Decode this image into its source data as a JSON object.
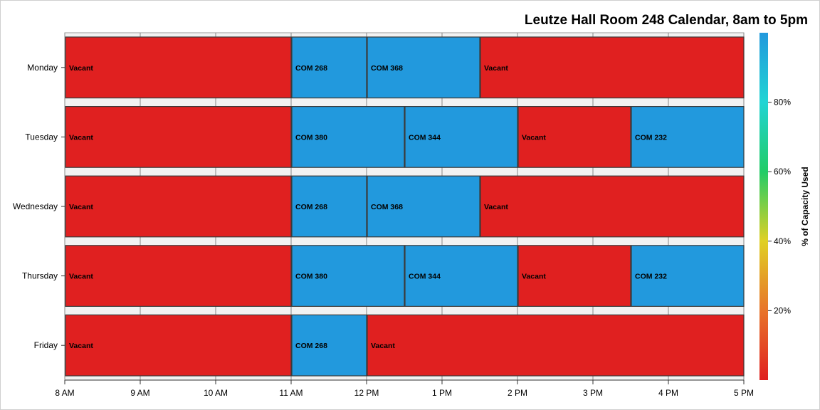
{
  "chart_data": {
    "type": "bar",
    "orientation": "horizontal",
    "title": "Leutze Hall Room 248 Calendar, 8am to 5pm",
    "xlim": [
      8,
      17
    ],
    "x_ticks": [
      {
        "value": 8,
        "label": "8 AM"
      },
      {
        "value": 9,
        "label": "9 AM"
      },
      {
        "value": 10,
        "label": "10 AM"
      },
      {
        "value": 11,
        "label": "11 AM"
      },
      {
        "value": 12,
        "label": "12 PM"
      },
      {
        "value": 13,
        "label": "1 PM"
      },
      {
        "value": 14,
        "label": "2 PM"
      },
      {
        "value": 15,
        "label": "3 PM"
      },
      {
        "value": 16,
        "label": "4 PM"
      },
      {
        "value": 17,
        "label": "5 PM"
      }
    ],
    "grid": true,
    "categories": [
      "Monday",
      "Tuesday",
      "Wednesday",
      "Thursday",
      "Friday"
    ],
    "segments": [
      {
        "day": "Monday",
        "start": 8,
        "end": 11,
        "label": "Vacant",
        "capacity_pct": 0
      },
      {
        "day": "Monday",
        "start": 11,
        "end": 12,
        "label": "COM 268",
        "capacity_pct": 100
      },
      {
        "day": "Monday",
        "start": 12,
        "end": 13.5,
        "label": "COM 368",
        "capacity_pct": 100
      },
      {
        "day": "Monday",
        "start": 13.5,
        "end": 17,
        "label": "Vacant",
        "capacity_pct": 0
      },
      {
        "day": "Tuesday",
        "start": 8,
        "end": 11,
        "label": "Vacant",
        "capacity_pct": 0
      },
      {
        "day": "Tuesday",
        "start": 11,
        "end": 12.5,
        "label": "COM 380",
        "capacity_pct": 100
      },
      {
        "day": "Tuesday",
        "start": 12.5,
        "end": 14,
        "label": "COM 344",
        "capacity_pct": 100
      },
      {
        "day": "Tuesday",
        "start": 14,
        "end": 15.5,
        "label": "Vacant",
        "capacity_pct": 0
      },
      {
        "day": "Tuesday",
        "start": 15.5,
        "end": 17,
        "label": "COM 232",
        "capacity_pct": 100
      },
      {
        "day": "Wednesday",
        "start": 8,
        "end": 11,
        "label": "Vacant",
        "capacity_pct": 0
      },
      {
        "day": "Wednesday",
        "start": 11,
        "end": 12,
        "label": "COM 268",
        "capacity_pct": 100
      },
      {
        "day": "Wednesday",
        "start": 12,
        "end": 13.5,
        "label": "COM 368",
        "capacity_pct": 100
      },
      {
        "day": "Wednesday",
        "start": 13.5,
        "end": 17,
        "label": "Vacant",
        "capacity_pct": 0
      },
      {
        "day": "Thursday",
        "start": 8,
        "end": 11,
        "label": "Vacant",
        "capacity_pct": 0
      },
      {
        "day": "Thursday",
        "start": 11,
        "end": 12.5,
        "label": "COM 380",
        "capacity_pct": 100
      },
      {
        "day": "Thursday",
        "start": 12.5,
        "end": 14,
        "label": "COM 344",
        "capacity_pct": 100
      },
      {
        "day": "Thursday",
        "start": 14,
        "end": 15.5,
        "label": "Vacant",
        "capacity_pct": 0
      },
      {
        "day": "Thursday",
        "start": 15.5,
        "end": 17,
        "label": "COM 232",
        "capacity_pct": 100
      },
      {
        "day": "Friday",
        "start": 8,
        "end": 11,
        "label": "Vacant",
        "capacity_pct": 0
      },
      {
        "day": "Friday",
        "start": 11,
        "end": 12,
        "label": "COM 268",
        "capacity_pct": 100
      },
      {
        "day": "Friday",
        "start": 12,
        "end": 17,
        "label": "Vacant",
        "capacity_pct": 0
      }
    ],
    "colors": {
      "vacant": "#e02020",
      "occupied": "#2299dd"
    },
    "legend": {
      "title": "% of Capacity Used",
      "placement": "right",
      "range": [
        0,
        100
      ],
      "ticks": [
        {
          "value": 20,
          "label": "20%"
        },
        {
          "value": 40,
          "label": "40%"
        },
        {
          "value": 60,
          "label": "60%"
        },
        {
          "value": 80,
          "label": "80%"
        }
      ],
      "gradient": [
        "#e02020",
        "#e8742a",
        "#e0d024",
        "#22cc66",
        "#22d4d4",
        "#2299dd"
      ]
    }
  }
}
